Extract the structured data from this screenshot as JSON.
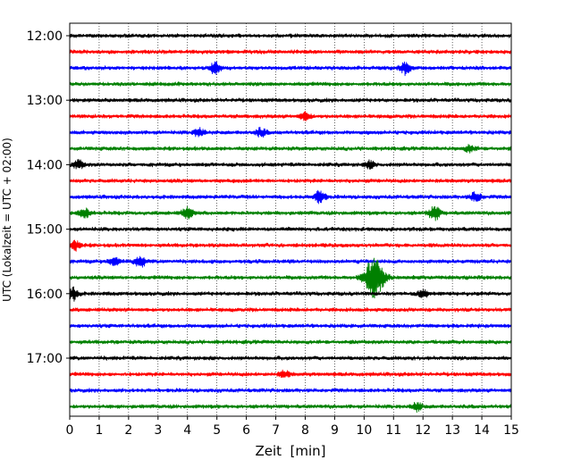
{
  "chart_data": {
    "type": "line",
    "title": "",
    "xlabel": "Zeit  [min]",
    "ylabel": "UTC (Lokalzeit = UTC + 02:00)",
    "xlim": [
      0,
      15
    ],
    "x_ticks": [
      "0",
      "1",
      "2",
      "3",
      "4",
      "5",
      "6",
      "7",
      "8",
      "9",
      "10",
      "11",
      "12",
      "13",
      "14",
      "15"
    ],
    "y_tick_labels": [
      "12:00",
      "13:00",
      "14:00",
      "15:00",
      "16:00",
      "17:00"
    ],
    "y_tick_rows": [
      0,
      4,
      8,
      12,
      16,
      20
    ],
    "grid": "vertical dotted at every minute",
    "colors": [
      "#000000",
      "#ff0000",
      "#0000ff",
      "#008000"
    ],
    "series": [
      {
        "row": 0,
        "color": "#000000",
        "events": []
      },
      {
        "row": 1,
        "color": "#ff0000",
        "events": []
      },
      {
        "row": 2,
        "color": "#0000ff",
        "events": [
          [
            4.95,
            0.35
          ],
          [
            11.4,
            0.4
          ]
        ]
      },
      {
        "row": 3,
        "color": "#008000",
        "events": []
      },
      {
        "row": 4,
        "color": "#000000",
        "events": []
      },
      {
        "row": 5,
        "color": "#ff0000",
        "events": [
          [
            8.0,
            0.25
          ]
        ]
      },
      {
        "row": 6,
        "color": "#0000ff",
        "events": [
          [
            4.4,
            0.25
          ],
          [
            6.5,
            0.25
          ]
        ]
      },
      {
        "row": 7,
        "color": "#008000",
        "events": [
          [
            13.6,
            0.2
          ]
        ]
      },
      {
        "row": 8,
        "color": "#000000",
        "events": [
          [
            0.3,
            0.25
          ],
          [
            10.2,
            0.2
          ]
        ]
      },
      {
        "row": 9,
        "color": "#ff0000",
        "events": []
      },
      {
        "row": 10,
        "color": "#0000ff",
        "events": [
          [
            8.5,
            0.4
          ],
          [
            13.8,
            0.3
          ]
        ]
      },
      {
        "row": 11,
        "color": "#008000",
        "events": [
          [
            0.5,
            0.3
          ],
          [
            4.0,
            0.35
          ],
          [
            12.4,
            0.45
          ]
        ]
      },
      {
        "row": 12,
        "color": "#000000",
        "events": []
      },
      {
        "row": 13,
        "color": "#ff0000",
        "events": [
          [
            0.2,
            0.3
          ]
        ]
      },
      {
        "row": 14,
        "color": "#0000ff",
        "events": [
          [
            1.5,
            0.25
          ],
          [
            2.4,
            0.35
          ]
        ]
      },
      {
        "row": 15,
        "color": "#008000",
        "events": [
          [
            10.35,
            1.3
          ]
        ]
      },
      {
        "row": 16,
        "color": "#000000",
        "events": [
          [
            0.1,
            0.4
          ],
          [
            12.0,
            0.2
          ]
        ]
      },
      {
        "row": 17,
        "color": "#ff0000",
        "events": []
      },
      {
        "row": 18,
        "color": "#0000ff",
        "events": []
      },
      {
        "row": 19,
        "color": "#008000",
        "events": []
      },
      {
        "row": 20,
        "color": "#000000",
        "events": []
      },
      {
        "row": 21,
        "color": "#ff0000",
        "events": [
          [
            7.3,
            0.2
          ]
        ]
      },
      {
        "row": 22,
        "color": "#0000ff",
        "events": []
      },
      {
        "row": 23,
        "color": "#008000",
        "events": [
          [
            11.8,
            0.25
          ]
        ]
      }
    ]
  }
}
